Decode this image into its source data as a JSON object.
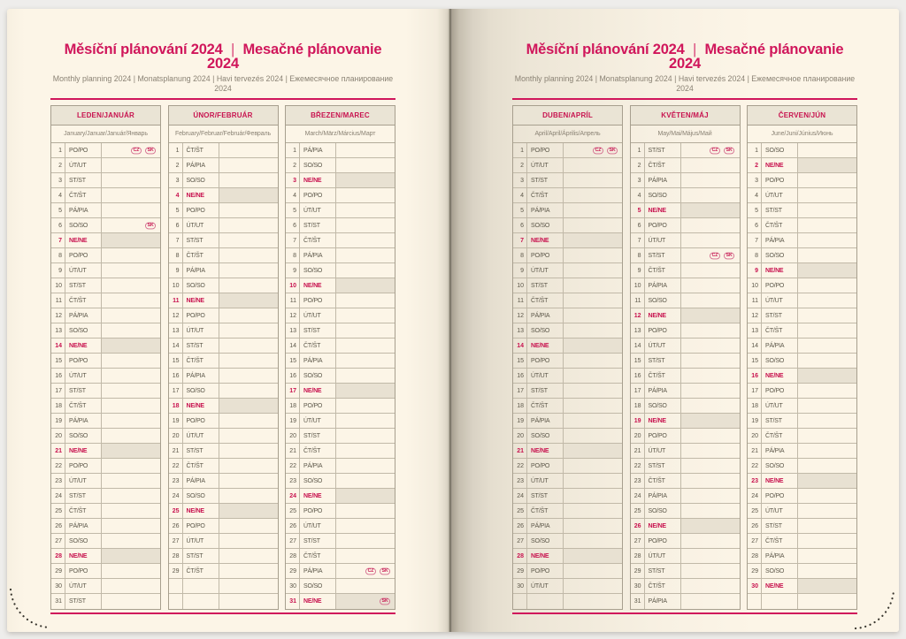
{
  "header": {
    "title_left": "Měsíční plánování 2024",
    "title_divider": "|",
    "title_right": "Mesačné plánovanie 2024",
    "subtitle": "Monthly planning 2024 | Monatsplanung 2024 | Havi tervezés 2024 | Ежемесячное планирование 2024"
  },
  "colors": {
    "accent": "#d0165b",
    "sunday_red": "#c8134f",
    "page_cream": "#fcf5e7",
    "month_header_bg": "#eae4d5",
    "sunday_note_bg": "#e8e1d2",
    "grid_border": "#a79f8e"
  },
  "weekday_abbreviations": {
    "monday": "PO/PO",
    "tuesday": "ÚT/UT",
    "wednesday": "ST/ST",
    "thursday": "ČT/ŠT",
    "friday": "PÁ/PIA",
    "saturday": "SO/SO",
    "sunday": "NE/NE"
  },
  "holiday_badge_labels": [
    "CZ",
    "SK"
  ],
  "pages": [
    {
      "side": "left",
      "months": [
        {
          "title": "LEDEN/JANUÁR",
          "languages": "January/Januar/Január/Январь",
          "empty_rows": 0,
          "days": [
            {
              "n": 1,
              "w": "PO/PO",
              "b": [
                "CZ",
                "SK"
              ]
            },
            {
              "n": 2,
              "w": "ÚT/UT"
            },
            {
              "n": 3,
              "w": "ST/ST"
            },
            {
              "n": 4,
              "w": "ČT/ŠT"
            },
            {
              "n": 5,
              "w": "PÁ/PIA"
            },
            {
              "n": 6,
              "w": "SO/SO",
              "b": [
                "SK"
              ]
            },
            {
              "n": 7,
              "w": "NE/NE",
              "s": 1
            },
            {
              "n": 8,
              "w": "PO/PO"
            },
            {
              "n": 9,
              "w": "ÚT/UT"
            },
            {
              "n": 10,
              "w": "ST/ST"
            },
            {
              "n": 11,
              "w": "ČT/ŠT"
            },
            {
              "n": 12,
              "w": "PÁ/PIA"
            },
            {
              "n": 13,
              "w": "SO/SO"
            },
            {
              "n": 14,
              "w": "NE/NE",
              "s": 1
            },
            {
              "n": 15,
              "w": "PO/PO"
            },
            {
              "n": 16,
              "w": "ÚT/UT"
            },
            {
              "n": 17,
              "w": "ST/ST"
            },
            {
              "n": 18,
              "w": "ČT/ŠT"
            },
            {
              "n": 19,
              "w": "PÁ/PIA"
            },
            {
              "n": 20,
              "w": "SO/SO"
            },
            {
              "n": 21,
              "w": "NE/NE",
              "s": 1
            },
            {
              "n": 22,
              "w": "PO/PO"
            },
            {
              "n": 23,
              "w": "ÚT/UT"
            },
            {
              "n": 24,
              "w": "ST/ST"
            },
            {
              "n": 25,
              "w": "ČT/ŠT"
            },
            {
              "n": 26,
              "w": "PÁ/PIA"
            },
            {
              "n": 27,
              "w": "SO/SO"
            },
            {
              "n": 28,
              "w": "NE/NE",
              "s": 1
            },
            {
              "n": 29,
              "w": "PO/PO"
            },
            {
              "n": 30,
              "w": "ÚT/UT"
            },
            {
              "n": 31,
              "w": "ST/ST"
            }
          ]
        },
        {
          "title": "ÚNOR/FEBRUÁR",
          "languages": "February/Februar/Február/Февраль",
          "empty_rows": 2,
          "days": [
            {
              "n": 1,
              "w": "ČT/ŠT"
            },
            {
              "n": 2,
              "w": "PÁ/PIA"
            },
            {
              "n": 3,
              "w": "SO/SO"
            },
            {
              "n": 4,
              "w": "NE/NE",
              "s": 1
            },
            {
              "n": 5,
              "w": "PO/PO"
            },
            {
              "n": 6,
              "w": "ÚT/UT"
            },
            {
              "n": 7,
              "w": "ST/ST"
            },
            {
              "n": 8,
              "w": "ČT/ŠT"
            },
            {
              "n": 9,
              "w": "PÁ/PIA"
            },
            {
              "n": 10,
              "w": "SO/SO"
            },
            {
              "n": 11,
              "w": "NE/NE",
              "s": 1
            },
            {
              "n": 12,
              "w": "PO/PO"
            },
            {
              "n": 13,
              "w": "ÚT/UT"
            },
            {
              "n": 14,
              "w": "ST/ST"
            },
            {
              "n": 15,
              "w": "ČT/ŠT"
            },
            {
              "n": 16,
              "w": "PÁ/PIA"
            },
            {
              "n": 17,
              "w": "SO/SO"
            },
            {
              "n": 18,
              "w": "NE/NE",
              "s": 1
            },
            {
              "n": 19,
              "w": "PO/PO"
            },
            {
              "n": 20,
              "w": "ÚT/UT"
            },
            {
              "n": 21,
              "w": "ST/ST"
            },
            {
              "n": 22,
              "w": "ČT/ŠT"
            },
            {
              "n": 23,
              "w": "PÁ/PIA"
            },
            {
              "n": 24,
              "w": "SO/SO"
            },
            {
              "n": 25,
              "w": "NE/NE",
              "s": 1
            },
            {
              "n": 26,
              "w": "PO/PO"
            },
            {
              "n": 27,
              "w": "ÚT/UT"
            },
            {
              "n": 28,
              "w": "ST/ST"
            },
            {
              "n": 29,
              "w": "ČT/ŠT"
            }
          ]
        },
        {
          "title": "BŘEZEN/MAREC",
          "languages": "March/März/Március/Март",
          "empty_rows": 0,
          "days": [
            {
              "n": 1,
              "w": "PÁ/PIA"
            },
            {
              "n": 2,
              "w": "SO/SO"
            },
            {
              "n": 3,
              "w": "NE/NE",
              "s": 1
            },
            {
              "n": 4,
              "w": "PO/PO"
            },
            {
              "n": 5,
              "w": "ÚT/UT"
            },
            {
              "n": 6,
              "w": "ST/ST"
            },
            {
              "n": 7,
              "w": "ČT/ŠT"
            },
            {
              "n": 8,
              "w": "PÁ/PIA"
            },
            {
              "n": 9,
              "w": "SO/SO"
            },
            {
              "n": 10,
              "w": "NE/NE",
              "s": 1
            },
            {
              "n": 11,
              "w": "PO/PO"
            },
            {
              "n": 12,
              "w": "ÚT/UT"
            },
            {
              "n": 13,
              "w": "ST/ST"
            },
            {
              "n": 14,
              "w": "ČT/ŠT"
            },
            {
              "n": 15,
              "w": "PÁ/PIA"
            },
            {
              "n": 16,
              "w": "SO/SO"
            },
            {
              "n": 17,
              "w": "NE/NE",
              "s": 1
            },
            {
              "n": 18,
              "w": "PO/PO"
            },
            {
              "n": 19,
              "w": "ÚT/UT"
            },
            {
              "n": 20,
              "w": "ST/ST"
            },
            {
              "n": 21,
              "w": "ČT/ŠT"
            },
            {
              "n": 22,
              "w": "PÁ/PIA"
            },
            {
              "n": 23,
              "w": "SO/SO"
            },
            {
              "n": 24,
              "w": "NE/NE",
              "s": 1
            },
            {
              "n": 25,
              "w": "PO/PO"
            },
            {
              "n": 26,
              "w": "ÚT/UT"
            },
            {
              "n": 27,
              "w": "ST/ST"
            },
            {
              "n": 28,
              "w": "ČT/ŠT"
            },
            {
              "n": 29,
              "w": "PÁ/PIA",
              "b": [
                "CZ",
                "SK"
              ]
            },
            {
              "n": 30,
              "w": "SO/SO"
            },
            {
              "n": 31,
              "w": "NE/NE",
              "s": 1,
              "b": [
                "SK"
              ]
            }
          ]
        }
      ]
    },
    {
      "side": "right",
      "months": [
        {
          "title": "DUBEN/APRÍL",
          "languages": "April/April/Április/Апрель",
          "empty_rows": 1,
          "days": [
            {
              "n": 1,
              "w": "PO/PO",
              "b": [
                "CZ",
                "SK"
              ]
            },
            {
              "n": 2,
              "w": "ÚT/UT"
            },
            {
              "n": 3,
              "w": "ST/ST"
            },
            {
              "n": 4,
              "w": "ČT/ŠT"
            },
            {
              "n": 5,
              "w": "PÁ/PIA"
            },
            {
              "n": 6,
              "w": "SO/SO"
            },
            {
              "n": 7,
              "w": "NE/NE",
              "s": 1
            },
            {
              "n": 8,
              "w": "PO/PO"
            },
            {
              "n": 9,
              "w": "ÚT/UT"
            },
            {
              "n": 10,
              "w": "ST/ST"
            },
            {
              "n": 11,
              "w": "ČT/ŠT"
            },
            {
              "n": 12,
              "w": "PÁ/PIA"
            },
            {
              "n": 13,
              "w": "SO/SO"
            },
            {
              "n": 14,
              "w": "NE/NE",
              "s": 1
            },
            {
              "n": 15,
              "w": "PO/PO"
            },
            {
              "n": 16,
              "w": "ÚT/UT"
            },
            {
              "n": 17,
              "w": "ST/ST"
            },
            {
              "n": 18,
              "w": "ČT/ŠT"
            },
            {
              "n": 19,
              "w": "PÁ/PIA"
            },
            {
              "n": 20,
              "w": "SO/SO"
            },
            {
              "n": 21,
              "w": "NE/NE",
              "s": 1
            },
            {
              "n": 22,
              "w": "PO/PO"
            },
            {
              "n": 23,
              "w": "ÚT/UT"
            },
            {
              "n": 24,
              "w": "ST/ST"
            },
            {
              "n": 25,
              "w": "ČT/ŠT"
            },
            {
              "n": 26,
              "w": "PÁ/PIA"
            },
            {
              "n": 27,
              "w": "SO/SO"
            },
            {
              "n": 28,
              "w": "NE/NE",
              "s": 1
            },
            {
              "n": 29,
              "w": "PO/PO"
            },
            {
              "n": 30,
              "w": "ÚT/UT"
            }
          ]
        },
        {
          "title": "KVĚTEN/MÁJ",
          "languages": "May/Mai/Május/Май",
          "empty_rows": 0,
          "days": [
            {
              "n": 1,
              "w": "ST/ST",
              "b": [
                "CZ",
                "SK"
              ]
            },
            {
              "n": 2,
              "w": "ČT/ŠT"
            },
            {
              "n": 3,
              "w": "PÁ/PIA"
            },
            {
              "n": 4,
              "w": "SO/SO"
            },
            {
              "n": 5,
              "w": "NE/NE",
              "s": 1
            },
            {
              "n": 6,
              "w": "PO/PO"
            },
            {
              "n": 7,
              "w": "ÚT/UT"
            },
            {
              "n": 8,
              "w": "ST/ST",
              "b": [
                "CZ",
                "SK"
              ]
            },
            {
              "n": 9,
              "w": "ČT/ŠT"
            },
            {
              "n": 10,
              "w": "PÁ/PIA"
            },
            {
              "n": 11,
              "w": "SO/SO"
            },
            {
              "n": 12,
              "w": "NE/NE",
              "s": 1
            },
            {
              "n": 13,
              "w": "PO/PO"
            },
            {
              "n": 14,
              "w": "ÚT/UT"
            },
            {
              "n": 15,
              "w": "ST/ST"
            },
            {
              "n": 16,
              "w": "ČT/ŠT"
            },
            {
              "n": 17,
              "w": "PÁ/PIA"
            },
            {
              "n": 18,
              "w": "SO/SO"
            },
            {
              "n": 19,
              "w": "NE/NE",
              "s": 1
            },
            {
              "n": 20,
              "w": "PO/PO"
            },
            {
              "n": 21,
              "w": "ÚT/UT"
            },
            {
              "n": 22,
              "w": "ST/ST"
            },
            {
              "n": 23,
              "w": "ČT/ŠT"
            },
            {
              "n": 24,
              "w": "PÁ/PIA"
            },
            {
              "n": 25,
              "w": "SO/SO"
            },
            {
              "n": 26,
              "w": "NE/NE",
              "s": 1
            },
            {
              "n": 27,
              "w": "PO/PO"
            },
            {
              "n": 28,
              "w": "ÚT/UT"
            },
            {
              "n": 29,
              "w": "ST/ST"
            },
            {
              "n": 30,
              "w": "ČT/ŠT"
            },
            {
              "n": 31,
              "w": "PÁ/PIA"
            }
          ]
        },
        {
          "title": "ČERVEN/JÚN",
          "languages": "June/Juni/Június/Июнь",
          "empty_rows": 1,
          "days": [
            {
              "n": 1,
              "w": "SO/SO"
            },
            {
              "n": 2,
              "w": "NE/NE",
              "s": 1
            },
            {
              "n": 3,
              "w": "PO/PO"
            },
            {
              "n": 4,
              "w": "ÚT/UT"
            },
            {
              "n": 5,
              "w": "ST/ST"
            },
            {
              "n": 6,
              "w": "ČT/ŠT"
            },
            {
              "n": 7,
              "w": "PÁ/PIA"
            },
            {
              "n": 8,
              "w": "SO/SO"
            },
            {
              "n": 9,
              "w": "NE/NE",
              "s": 1
            },
            {
              "n": 10,
              "w": "PO/PO"
            },
            {
              "n": 11,
              "w": "ÚT/UT"
            },
            {
              "n": 12,
              "w": "ST/ST"
            },
            {
              "n": 13,
              "w": "ČT/ŠT"
            },
            {
              "n": 14,
              "w": "PÁ/PIA"
            },
            {
              "n": 15,
              "w": "SO/SO"
            },
            {
              "n": 16,
              "w": "NE/NE",
              "s": 1
            },
            {
              "n": 17,
              "w": "PO/PO"
            },
            {
              "n": 18,
              "w": "ÚT/UT"
            },
            {
              "n": 19,
              "w": "ST/ST"
            },
            {
              "n": 20,
              "w": "ČT/ŠT"
            },
            {
              "n": 21,
              "w": "PÁ/PIA"
            },
            {
              "n": 22,
              "w": "SO/SO"
            },
            {
              "n": 23,
              "w": "NE/NE",
              "s": 1
            },
            {
              "n": 24,
              "w": "PO/PO"
            },
            {
              "n": 25,
              "w": "ÚT/UT"
            },
            {
              "n": 26,
              "w": "ST/ST"
            },
            {
              "n": 27,
              "w": "ČT/ŠT"
            },
            {
              "n": 28,
              "w": "PÁ/PIA"
            },
            {
              "n": 29,
              "w": "SO/SO"
            },
            {
              "n": 30,
              "w": "NE/NE",
              "s": 1
            }
          ]
        }
      ]
    }
  ]
}
